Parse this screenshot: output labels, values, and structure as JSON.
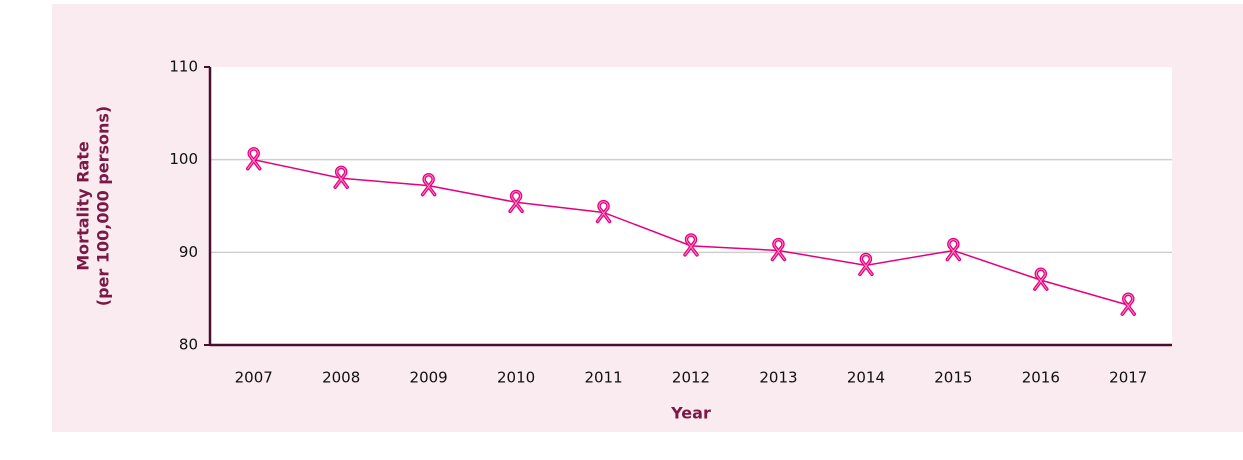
{
  "chart_data": {
    "type": "line",
    "x_label": "Year",
    "y_label": [
      "Mortality Rate",
      "(per 100,000 persons)"
    ],
    "categories": [
      "2007",
      "2008",
      "2009",
      "2010",
      "2011",
      "2012",
      "2013",
      "2014",
      "2015",
      "2016",
      "2017"
    ],
    "series": [
      {
        "name": "Mortality Rate",
        "color": "#e6007e",
        "values": [
          100,
          98.0,
          97.2,
          95.4,
          94.3,
          90.7,
          90.2,
          88.6,
          90.2,
          87.0,
          84.3
        ]
      }
    ],
    "ylim": [
      80,
      110
    ],
    "yticks": [
      80,
      90,
      100,
      110
    ],
    "grid": true
  }
}
